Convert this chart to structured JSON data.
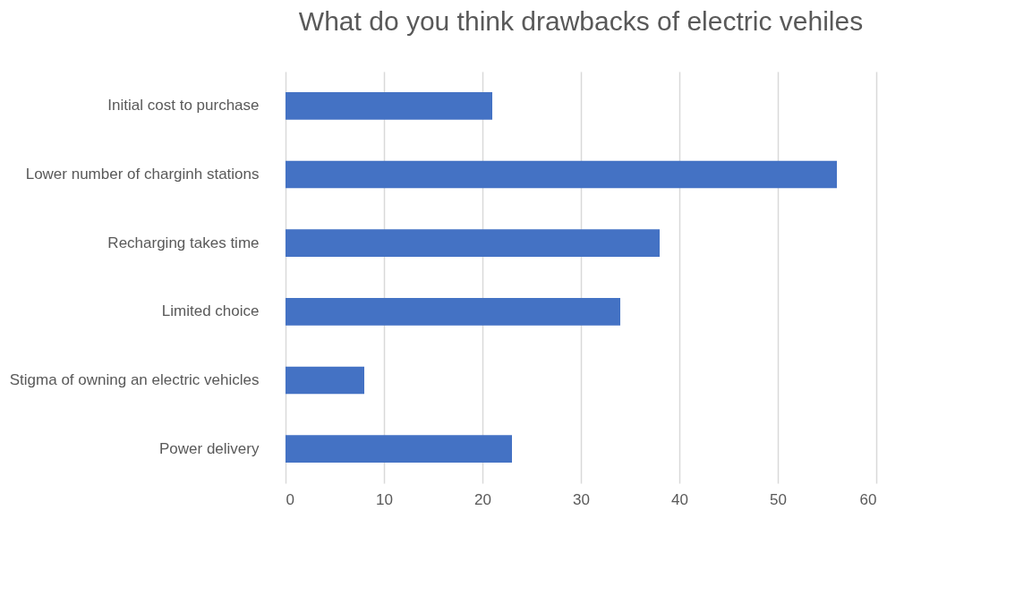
{
  "chart_data": {
    "type": "bar",
    "orientation": "horizontal",
    "title": "What do you think drawbacks of electric vehiles",
    "categories": [
      "Initial cost to purchase",
      "Lower number of charginh stations",
      "Recharging takes time",
      "Limited choice",
      "Stigma of owning an electric vehicles",
      "Power delivery"
    ],
    "values": [
      21,
      56,
      38,
      34,
      8,
      23
    ],
    "color": "#4472c4",
    "xlim": [
      0,
      60
    ],
    "xticks": [
      0,
      10,
      20,
      30,
      40,
      50,
      60
    ],
    "grid": "x"
  }
}
